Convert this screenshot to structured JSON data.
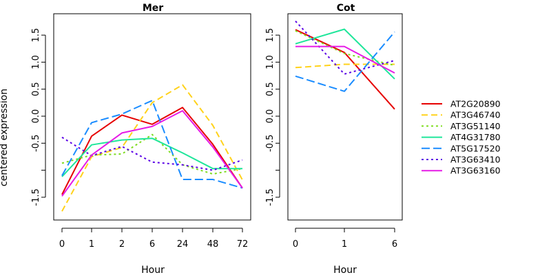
{
  "chart_data": [
    {
      "type": "line",
      "title": "Mer",
      "xlabel": "Hour",
      "ylabel": "centered expression",
      "categories": [
        "0",
        "1",
        "2",
        "6",
        "24",
        "48",
        "72"
      ],
      "y_ticks": [
        "-1.5",
        "-0.5",
        "0.0",
        "0.5",
        "1.0",
        "1.5"
      ],
      "ylim": [
        -1.9,
        1.9
      ],
      "series": [
        {
          "name": "AT2G20890",
          "values": [
            -1.45,
            -0.37,
            0.02,
            -0.15,
            0.16,
            -0.52,
            -1.33
          ]
        },
        {
          "name": "AT3G46740",
          "values": [
            -1.76,
            -0.75,
            -0.58,
            0.25,
            0.58,
            -0.17,
            -1.18
          ]
        },
        {
          "name": "AT3G51140",
          "values": [
            -0.87,
            -0.72,
            -0.7,
            -0.34,
            -0.9,
            -1.07,
            -0.97
          ]
        },
        {
          "name": "AT4G31780",
          "values": [
            -1.12,
            -0.53,
            -0.44,
            -0.41,
            -0.68,
            -0.97,
            -0.97
          ]
        },
        {
          "name": "AT5G17520",
          "values": [
            -1.1,
            -0.12,
            0.04,
            0.29,
            -1.17,
            -1.17,
            -1.33
          ]
        },
        {
          "name": "AT3G63410",
          "values": [
            -0.39,
            -0.73,
            -0.56,
            -0.85,
            -0.9,
            -1.0,
            -0.81
          ]
        },
        {
          "name": "AT3G63160",
          "values": [
            -1.48,
            -0.72,
            -0.31,
            -0.19,
            0.1,
            -0.57,
            -1.33
          ]
        }
      ]
    },
    {
      "type": "line",
      "title": "Cot",
      "xlabel": "Hour",
      "ylabel": "",
      "categories": [
        "0",
        "1",
        "6"
      ],
      "y_ticks": [
        "-1.5",
        "-0.5",
        "0.0",
        "0.5",
        "1.0",
        "1.5"
      ],
      "ylim": [
        -1.9,
        1.9
      ],
      "series": [
        {
          "name": "AT2G20890",
          "values": [
            1.6,
            1.18,
            0.13
          ]
        },
        {
          "name": "AT3G46740",
          "values": [
            0.9,
            0.96,
            0.96
          ]
        },
        {
          "name": "AT3G51140",
          "values": [
            1.58,
            1.16,
            0.94
          ]
        },
        {
          "name": "AT4G31780",
          "values": [
            1.34,
            1.61,
            0.69
          ]
        },
        {
          "name": "AT5G17520",
          "values": [
            0.74,
            0.46,
            1.56
          ]
        },
        {
          "name": "AT3G63410",
          "values": [
            1.76,
            0.78,
            1.03
          ]
        },
        {
          "name": "AT3G63160",
          "values": [
            1.29,
            1.29,
            0.8
          ]
        }
      ]
    }
  ],
  "legend": {
    "position": "right",
    "entries": [
      {
        "name": "AT2G20890",
        "color": "#e60000",
        "dash": "solid"
      },
      {
        "name": "AT3G46740",
        "color": "#ffd21a",
        "dash": "dashed"
      },
      {
        "name": "AT3G51140",
        "color": "#7ddc1f",
        "dash": "dotted"
      },
      {
        "name": "AT4G31780",
        "color": "#1fe69a",
        "dash": "solid"
      },
      {
        "name": "AT5G17520",
        "color": "#1a8cff",
        "dash": "longdash"
      },
      {
        "name": "AT3G63410",
        "color": "#5a00e6",
        "dash": "dotted"
      },
      {
        "name": "AT3G63160",
        "color": "#e61ae6",
        "dash": "solid"
      }
    ]
  }
}
